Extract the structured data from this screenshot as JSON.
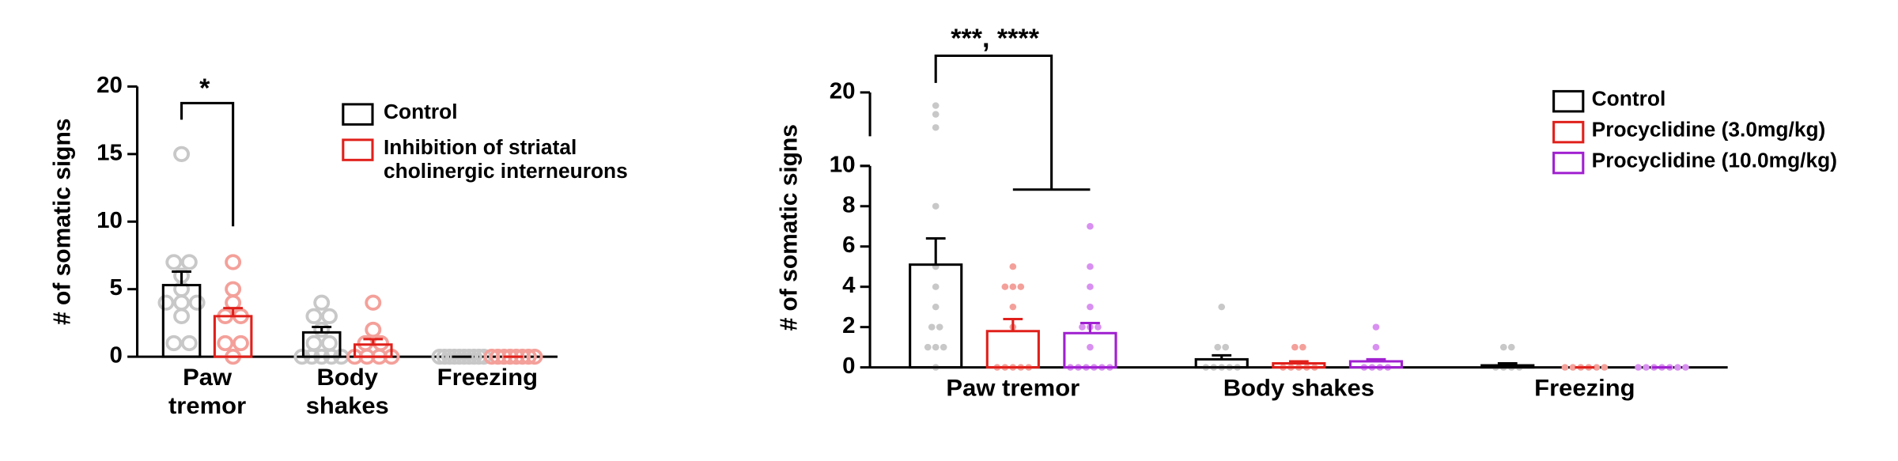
{
  "chart_data": [
    {
      "type": "bar",
      "ylabel": "# of somatic signs",
      "categories": [
        "Paw tremor",
        "Body shakes",
        "Freezing"
      ],
      "ylim": [
        0,
        20
      ],
      "yticks": [
        0,
        5,
        10,
        15,
        20
      ],
      "annotations": [
        "*"
      ],
      "series": [
        {
          "name": "Control",
          "color": "#000000",
          "point_color": "#c8c8c8",
          "values": [
            5.3,
            1.8,
            0
          ],
          "errors": [
            1.0,
            0.4,
            0
          ],
          "points": [
            [
              15,
              7,
              7,
              6,
              5,
              4,
              4,
              4,
              3,
              1,
              1
            ],
            [
              4,
              3,
              3,
              2,
              1,
              1,
              0,
              0,
              0,
              0,
              0
            ],
            [
              0,
              0,
              0,
              0,
              0,
              0,
              0,
              0,
              0,
              0
            ]
          ]
        },
        {
          "name": "Inhibition of striatal cholinergic interneurons",
          "color": "#e0201b",
          "point_color": "#f4a09a",
          "values": [
            3.0,
            0.9,
            0
          ],
          "errors": [
            0.6,
            0.4,
            0
          ],
          "points": [
            [
              7,
              5,
              4,
              3,
              3,
              1,
              1,
              0
            ],
            [
              4,
              2,
              1,
              1,
              0,
              0,
              0,
              0
            ],
            [
              0,
              0,
              0,
              0,
              0,
              0,
              0,
              0
            ]
          ]
        }
      ]
    },
    {
      "type": "bar",
      "ylabel": "# of somatic signs",
      "categories": [
        "Paw tremor",
        "Body shakes",
        "Freezing"
      ],
      "ylim": [
        0,
        10
      ],
      "yticks": [
        0,
        2,
        4,
        6,
        8,
        10
      ],
      "ylim_upper": [
        10,
        20
      ],
      "yticks_upper": [
        10,
        20
      ],
      "annotations": [
        "***, ****"
      ],
      "series": [
        {
          "name": "Control",
          "color": "#000000",
          "point_color": "#c8c8c8",
          "values": [
            5.1,
            0.4,
            0.1
          ],
          "errors": [
            1.3,
            0.2,
            0.1
          ],
          "points": [
            [
              17,
              15,
              12,
              8,
              5,
              4,
              3,
              2,
              2,
              1,
              1,
              1,
              0
            ],
            [
              3,
              1,
              1,
              0,
              0,
              0,
              0,
              0
            ],
            [
              1,
              1,
              0,
              0,
              0,
              0
            ]
          ]
        },
        {
          "name": "Procyclidine (3.0mg/kg)",
          "color": "#e0201b",
          "point_color": "#f4a09a",
          "values": [
            1.8,
            0.2,
            0
          ],
          "errors": [
            0.6,
            0.1,
            0
          ],
          "points": [
            [
              5,
              4,
              4,
              4,
              3,
              2,
              0,
              0,
              0,
              0,
              0
            ],
            [
              1,
              1,
              0,
              0,
              0,
              0,
              0
            ],
            [
              0,
              0,
              0,
              0,
              0,
              0
            ]
          ]
        },
        {
          "name": "Procyclidine (10.0mg/kg)",
          "color": "#a020d0",
          "point_color": "#d890f0",
          "values": [
            1.7,
            0.3,
            0
          ],
          "errors": [
            0.5,
            0.1,
            0
          ],
          "points": [
            [
              7,
              5,
              4,
              3,
              2,
              2,
              2,
              1,
              0,
              0,
              0,
              0,
              0,
              0
            ],
            [
              2,
              1,
              0,
              0,
              0,
              0
            ],
            [
              0,
              0,
              0,
              0,
              0,
              0,
              0
            ]
          ]
        }
      ]
    }
  ]
}
